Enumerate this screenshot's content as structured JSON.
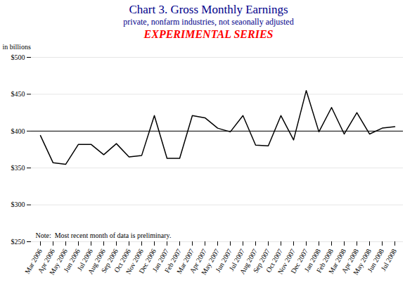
{
  "chart_data": {
    "type": "line",
    "title": "Chart 3. Gross Monthly Earnings",
    "subtitle": "private, nonfarm industries, not seaonally adjusted",
    "ylabel": "in billions",
    "annotations": [
      {
        "text": "EXPERIMENTAL SERIES",
        "color": "#FF0000"
      },
      {
        "text": "Note:  Most recent month of data is preliminary."
      }
    ],
    "categories": [
      "Mar 2006",
      "Apr 2006",
      "May 2006",
      "Jun 2006",
      "Jul 2006",
      "Aug 2006",
      "Sep 2006",
      "Oct 2006",
      "Nov 2006",
      "Dec 2006",
      "Jan 2007",
      "Feb 2007",
      "Mar 2007",
      "Apr 2007",
      "May 2007",
      "Jun 2007",
      "Jul 2007",
      "Aug 2007",
      "Sep 2007",
      "Oct 2007",
      "Nov 2007",
      "Dec 2007",
      "Jan 2008",
      "Feb 2008",
      "Mar 2008",
      "Apr 2008",
      "May 2008",
      "Jun 2008",
      "Jul 2008"
    ],
    "values": [
      394,
      357,
      355,
      382,
      382,
      368,
      383,
      365,
      367,
      421,
      363,
      363,
      421,
      418,
      404,
      399,
      421,
      381,
      380,
      421,
      388,
      455,
      399,
      432,
      396,
      425,
      396,
      404,
      406
    ],
    "color": "#000000",
    "reference_line": 400,
    "ylim": [
      250,
      500
    ],
    "yticks": [
      {
        "value": 250,
        "label": "$250"
      },
      {
        "value": 300,
        "label": "$300"
      },
      {
        "value": 350,
        "label": "$350"
      },
      {
        "value": 400,
        "label": "$400"
      },
      {
        "value": 450,
        "label": "$450"
      },
      {
        "value": 500,
        "label": "$500"
      }
    ],
    "grid": true
  }
}
